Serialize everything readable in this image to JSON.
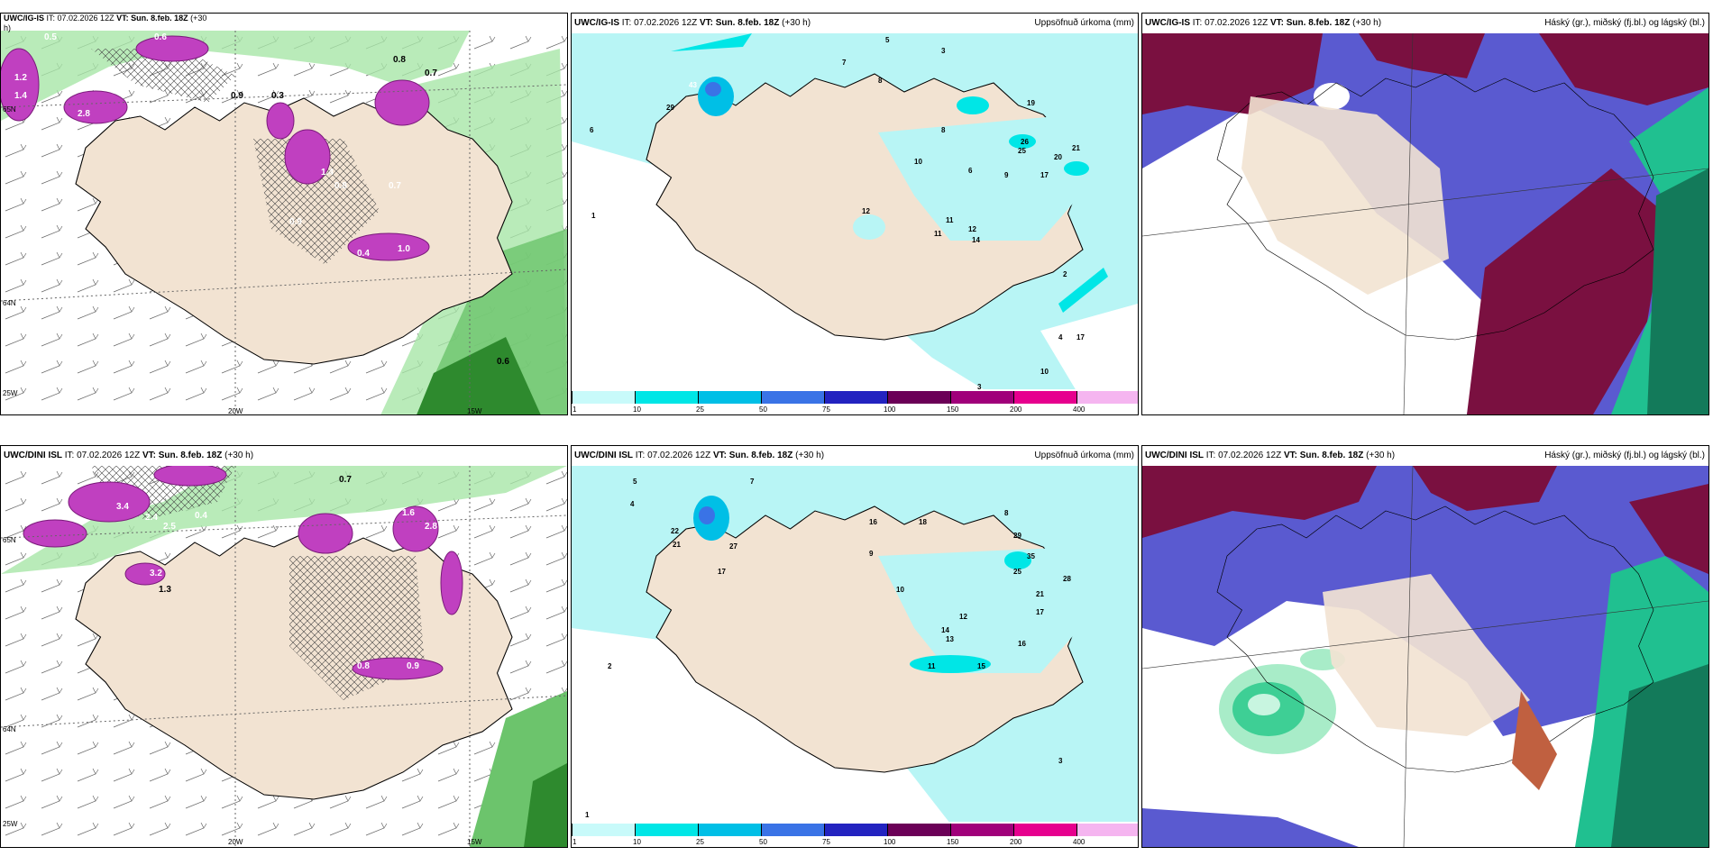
{
  "panels": [
    {
      "id": "tl",
      "model": "UWC/IG-IS",
      "it": "IT: 07.02.2026 12Z",
      "vt": "VT: Sun. 8.feb. 18Z",
      "lead": "(+30",
      "lead2": "h)",
      "title_right": "",
      "labels": [
        "0.5",
        "0.6",
        "1.2",
        "1.4",
        "0.8",
        "0.7",
        "2.8",
        "0.9",
        "1.4",
        "0.8",
        "0.7",
        "0.6",
        "0.4",
        "0.9",
        "1.0",
        "0.3"
      ],
      "grid_labels": [
        "20W",
        "15W",
        "25W",
        "65N",
        "64N"
      ]
    },
    {
      "id": "tm",
      "model": "UWC/IG-IS",
      "it": "IT: 07.02.2026 12Z",
      "vt": "VT: Sun. 8.feb. 18Z",
      "lead": "(+30 h)",
      "title_right": "Uppsöfnuð úrkoma (mm)",
      "labels": [
        "5",
        "3",
        "7",
        "8",
        "6",
        "43",
        "29",
        "12",
        "11",
        "19",
        "26",
        "25",
        "20",
        "21",
        "17",
        "12",
        "11",
        "10",
        "8",
        "9",
        "6",
        "4",
        "17",
        "2",
        "1",
        "3",
        "10",
        "14"
      ],
      "colorbar_ticks": [
        "1",
        "10",
        "25",
        "50",
        "75",
        "100",
        "150",
        "200",
        "400"
      ]
    },
    {
      "id": "tr",
      "model": "UWC/IG-IS",
      "it": "IT: 07.02.2026 12Z",
      "vt": "VT: Sun. 8.feb. 18Z",
      "lead": "(+30 h)",
      "title_right": "Háský (gr.), miðský (fj.bl.) og lágský (bl.)"
    },
    {
      "id": "bl",
      "model": "UWC/DINI ISL",
      "it": "IT: 07.02.2026 12Z",
      "vt": "VT: Sun. 8.feb. 18Z",
      "lead": "(+30 h)",
      "title_right": "",
      "labels": [
        "0.7",
        "3.4",
        "2.4",
        "2.5",
        "0.4",
        "3.2",
        "1.3",
        "1.6",
        "0.9",
        "0.8",
        "2.8",
        "0.9"
      ],
      "grid_labels": [
        "20W",
        "15W",
        "25W",
        "65N",
        "64N"
      ]
    },
    {
      "id": "bm",
      "model": "UWC/DINI ISL",
      "it": "IT: 07.02.2026 12Z",
      "vt": "VT: Sun. 8.feb. 18Z",
      "lead": "(+30 h)",
      "title_right": "Uppsöfnuð úrkoma (mm)",
      "labels": [
        "5",
        "7",
        "4",
        "22",
        "21",
        "27",
        "17",
        "16",
        "18",
        "29",
        "25",
        "35",
        "28",
        "21",
        "17",
        "15",
        "16",
        "14",
        "13",
        "12",
        "11",
        "10",
        "9",
        "8",
        "3",
        "2",
        "1"
      ],
      "colorbar_ticks": [
        "1",
        "10",
        "25",
        "50",
        "75",
        "100",
        "150",
        "200",
        "400"
      ]
    },
    {
      "id": "br",
      "model": "UWC/DINI ISL",
      "it": "IT: 07.02.2026 12Z",
      "vt": "VT: Sun. 8.feb. 18Z",
      "lead": "(+30 h)",
      "title_right": "Háský (gr.), miðský (fj.bl.) og lágský (bl.)"
    }
  ],
  "colorbar_colors": [
    "#c8fafa",
    "#00e6e6",
    "#00bfe6",
    "#3a73e6",
    "#2323c0",
    "#6b0057",
    "#a0007a",
    "#e6008e",
    "#f5b5f0"
  ],
  "colors": {
    "land": "#f2e3d2",
    "sea_precip_light": "#b8f5f5",
    "cloud_low": "#5a5ad0",
    "cloud_mid": "#7a1040",
    "cloud_high": "#20c090",
    "snow_purple": "#c040c0",
    "green_rain": "#5cc05c"
  }
}
